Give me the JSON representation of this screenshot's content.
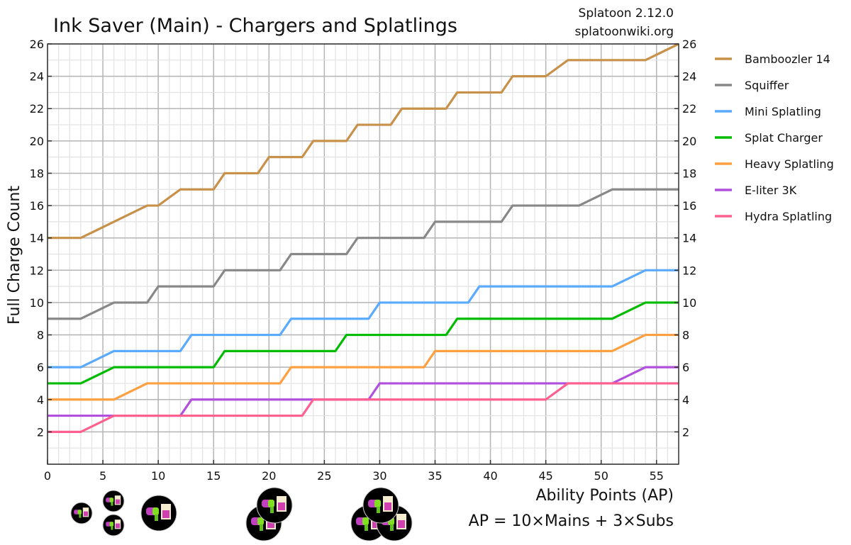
{
  "chart_data": {
    "type": "line",
    "title": "Ink Saver (Main) - Chargers and Splatlings",
    "source_lines": [
      "Splatoon 2.12.0",
      "splatoonwiki.org"
    ],
    "xlabel": "Ability Points (AP)",
    "xlabel_note": "AP = 10×Mains + 3×Subs",
    "ylabel": "Full Charge Count",
    "xlim": [
      0,
      57
    ],
    "ylim": [
      0,
      26
    ],
    "xticks": [
      0,
      5,
      10,
      15,
      20,
      25,
      30,
      35,
      40,
      45,
      50,
      55
    ],
    "yticks": [
      2,
      4,
      6,
      8,
      10,
      12,
      14,
      16,
      18,
      20,
      22,
      24,
      26
    ],
    "grid": true,
    "minor_grid_step": 1,
    "y_axis_right_labels": true,
    "legend_position": "right",
    "series": [
      {
        "name": "Bamboozler 14",
        "color": "#c8914a",
        "points": [
          [
            0,
            14
          ],
          [
            3,
            14
          ],
          [
            9,
            16
          ],
          [
            10,
            16
          ],
          [
            12,
            17
          ],
          [
            15,
            17
          ],
          [
            16,
            18
          ],
          [
            19,
            18
          ],
          [
            20,
            19
          ],
          [
            23,
            19
          ],
          [
            24,
            20
          ],
          [
            27,
            20
          ],
          [
            28,
            21
          ],
          [
            31,
            21
          ],
          [
            32,
            22
          ],
          [
            36,
            22
          ],
          [
            37,
            23
          ],
          [
            41,
            23
          ],
          [
            42,
            24
          ],
          [
            45,
            24
          ],
          [
            47,
            25
          ],
          [
            54,
            25
          ],
          [
            57,
            26
          ]
        ]
      },
      {
        "name": "Squiffer",
        "color": "#888888",
        "points": [
          [
            0,
            9
          ],
          [
            3,
            9
          ],
          [
            6,
            10
          ],
          [
            9,
            10
          ],
          [
            10,
            11
          ],
          [
            15,
            11
          ],
          [
            16,
            12
          ],
          [
            21,
            12
          ],
          [
            22,
            13
          ],
          [
            27,
            13
          ],
          [
            28,
            14
          ],
          [
            34,
            14
          ],
          [
            35,
            15
          ],
          [
            41,
            15
          ],
          [
            42,
            16
          ],
          [
            48,
            16
          ],
          [
            51,
            17
          ],
          [
            57,
            17
          ]
        ]
      },
      {
        "name": "Mini Splatling",
        "color": "#5aaaff",
        "points": [
          [
            0,
            6
          ],
          [
            3,
            6
          ],
          [
            6,
            7
          ],
          [
            12,
            7
          ],
          [
            13,
            8
          ],
          [
            21,
            8
          ],
          [
            22,
            9
          ],
          [
            29,
            9
          ],
          [
            30,
            10
          ],
          [
            38,
            10
          ],
          [
            39,
            11
          ],
          [
            51,
            11
          ],
          [
            54,
            12
          ],
          [
            57,
            12
          ]
        ]
      },
      {
        "name": "Splat Charger",
        "color": "#00bb00",
        "points": [
          [
            0,
            5
          ],
          [
            3,
            5
          ],
          [
            6,
            6
          ],
          [
            15,
            6
          ],
          [
            16,
            7
          ],
          [
            26,
            7
          ],
          [
            27,
            8
          ],
          [
            36,
            8
          ],
          [
            37,
            9
          ],
          [
            51,
            9
          ],
          [
            54,
            10
          ],
          [
            57,
            10
          ]
        ]
      },
      {
        "name": "Heavy Splatling",
        "color": "#ffa040",
        "points": [
          [
            0,
            4
          ],
          [
            6,
            4
          ],
          [
            9,
            5
          ],
          [
            21,
            5
          ],
          [
            22,
            6
          ],
          [
            34,
            6
          ],
          [
            35,
            7
          ],
          [
            51,
            7
          ],
          [
            54,
            8
          ],
          [
            57,
            8
          ]
        ]
      },
      {
        "name": "E-liter 3K",
        "color": "#b050dd",
        "points": [
          [
            0,
            3
          ],
          [
            12,
            3
          ],
          [
            13,
            4
          ],
          [
            29,
            4
          ],
          [
            30,
            5
          ],
          [
            51,
            5
          ],
          [
            54,
            6
          ],
          [
            57,
            6
          ]
        ]
      },
      {
        "name": "Hydra Splatling",
        "color": "#ff6090",
        "points": [
          [
            0,
            2
          ],
          [
            3,
            2
          ],
          [
            6,
            3
          ],
          [
            23,
            3
          ],
          [
            24,
            4
          ],
          [
            45,
            4
          ],
          [
            47,
            5
          ],
          [
            57,
            5
          ]
        ]
      }
    ],
    "ability_icon_groups": [
      {
        "label_ap": 3,
        "mains": 0,
        "subs": 1
      },
      {
        "label_ap": 6,
        "mains": 0,
        "subs": 2
      },
      {
        "label_ap": 10,
        "mains": 1,
        "subs": 0
      },
      {
        "label_ap": 20,
        "mains": 2,
        "subs": 0
      },
      {
        "label_ap": 30,
        "mains": 3,
        "subs": 0
      }
    ]
  }
}
